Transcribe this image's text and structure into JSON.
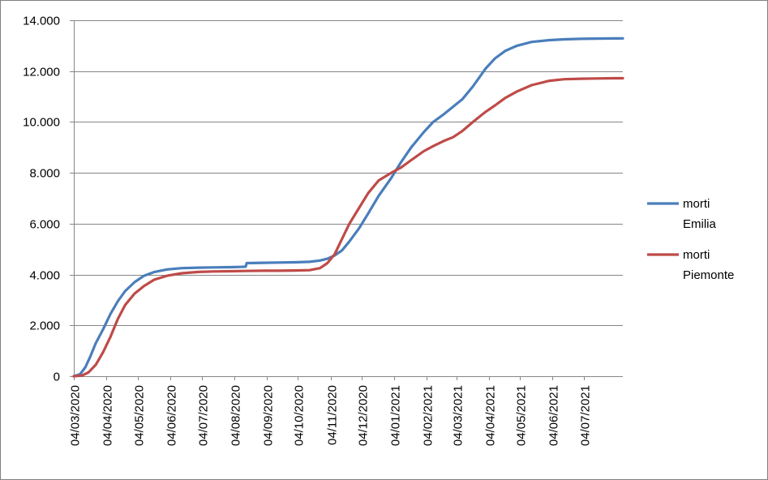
{
  "colors": {
    "emilia": "#4a7ebb",
    "piemonte": "#be4b48",
    "grid": "#868686",
    "axis": "#868686"
  },
  "chart_data": {
    "type": "line",
    "title": "",
    "xlabel": "",
    "ylabel": "",
    "ylim": [
      0,
      14000
    ],
    "y_ticks": [
      0,
      2000,
      4000,
      6000,
      8000,
      10000,
      12000,
      14000
    ],
    "y_tick_labels": [
      "0",
      "2.000",
      "4.000",
      "6.000",
      "8.000",
      "10.000",
      "12.000",
      "14.000"
    ],
    "x_start": "2020-03-04",
    "x_end": "2021-08-10",
    "x_ticks": [
      "2020-03-04",
      "2020-04-04",
      "2020-05-04",
      "2020-06-04",
      "2020-07-04",
      "2020-08-04",
      "2020-09-04",
      "2020-10-04",
      "2020-11-04",
      "2020-12-04",
      "2021-01-04",
      "2021-02-04",
      "2021-03-04",
      "2021-04-04",
      "2021-05-04",
      "2021-06-04",
      "2021-07-04"
    ],
    "x_tick_labels": [
      "04/03/2020",
      "04/04/2020",
      "04/05/2020",
      "04/06/2020",
      "04/07/2020",
      "04/08/2020",
      "04/09/2020",
      "04/10/2020",
      "04/11/2020",
      "04/12/2020",
      "04/01/2021",
      "04/02/2021",
      "04/03/2021",
      "04/04/2021",
      "04/05/2021",
      "04/06/2021",
      "04/07/2021"
    ],
    "grid": "horizontal",
    "legend": "right",
    "series": [
      {
        "name": "morti Emilia",
        "legend_lines": [
          "morti",
          "Emilia"
        ],
        "x": [
          "2020-03-04",
          "2020-03-10",
          "2020-03-15",
          "2020-03-20",
          "2020-03-25",
          "2020-04-01",
          "2020-04-08",
          "2020-04-15",
          "2020-04-22",
          "2020-05-01",
          "2020-05-10",
          "2020-05-20",
          "2020-06-01",
          "2020-06-15",
          "2020-07-01",
          "2020-07-15",
          "2020-08-01",
          "2020-08-10",
          "2020-08-15",
          "2020-08-16",
          "2020-09-01",
          "2020-09-15",
          "2020-10-01",
          "2020-10-15",
          "2020-10-25",
          "2020-11-01",
          "2020-11-08",
          "2020-11-15",
          "2020-11-22",
          "2020-12-01",
          "2020-12-10",
          "2020-12-20",
          "2021-01-01",
          "2021-01-10",
          "2021-01-20",
          "2021-02-01",
          "2021-02-10",
          "2021-02-20",
          "2021-03-01",
          "2021-03-10",
          "2021-03-20",
          "2021-04-01",
          "2021-04-10",
          "2021-04-20",
          "2021-05-01",
          "2021-05-15",
          "2021-06-01",
          "2021-06-15",
          "2021-07-01",
          "2021-07-15",
          "2021-08-01",
          "2021-08-10"
        ],
        "values": [
          0,
          80,
          350,
          800,
          1300,
          1850,
          2450,
          2950,
          3350,
          3700,
          3950,
          4100,
          4200,
          4250,
          4270,
          4280,
          4290,
          4300,
          4310,
          4450,
          4460,
          4470,
          4480,
          4500,
          4550,
          4620,
          4750,
          4950,
          5300,
          5800,
          6400,
          7100,
          7800,
          8400,
          9000,
          9600,
          10000,
          10300,
          10600,
          10900,
          11400,
          12100,
          12500,
          12800,
          13000,
          13150,
          13220,
          13250,
          13270,
          13280,
          13285,
          13290
        ]
      },
      {
        "name": "morti Piemonte",
        "legend_lines": [
          "morti",
          "Piemonte"
        ],
        "x": [
          "2020-03-04",
          "2020-03-12",
          "2020-03-18",
          "2020-03-25",
          "2020-04-01",
          "2020-04-08",
          "2020-04-15",
          "2020-04-22",
          "2020-05-01",
          "2020-05-10",
          "2020-05-20",
          "2020-06-01",
          "2020-06-15",
          "2020-07-01",
          "2020-07-15",
          "2020-08-01",
          "2020-08-15",
          "2020-09-01",
          "2020-09-15",
          "2020-10-01",
          "2020-10-15",
          "2020-10-25",
          "2020-11-01",
          "2020-11-08",
          "2020-11-15",
          "2020-11-22",
          "2020-12-01",
          "2020-12-10",
          "2020-12-20",
          "2021-01-01",
          "2021-01-10",
          "2021-01-20",
          "2021-02-01",
          "2021-02-10",
          "2021-02-20",
          "2021-03-01",
          "2021-03-10",
          "2021-03-20",
          "2021-04-01",
          "2021-04-10",
          "2021-04-20",
          "2021-05-01",
          "2021-05-15",
          "2021-06-01",
          "2021-06-15",
          "2021-07-01",
          "2021-07-15",
          "2021-08-01",
          "2021-08-10"
        ],
        "values": [
          0,
          30,
          150,
          450,
          950,
          1550,
          2250,
          2800,
          3250,
          3550,
          3800,
          3950,
          4050,
          4100,
          4120,
          4130,
          4140,
          4150,
          4150,
          4160,
          4170,
          4250,
          4450,
          4800,
          5400,
          6000,
          6600,
          7200,
          7700,
          8000,
          8200,
          8500,
          8850,
          9050,
          9250,
          9400,
          9650,
          10000,
          10400,
          10650,
          10950,
          11200,
          11450,
          11620,
          11680,
          11700,
          11710,
          11720,
          11720
        ]
      }
    ]
  }
}
